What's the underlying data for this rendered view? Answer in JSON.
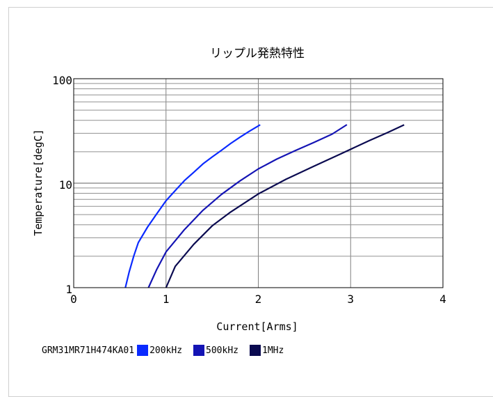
{
  "chart_data": {
    "type": "line",
    "title": "リップル発熱特性",
    "xlabel": "Current[Arms]",
    "ylabel": "Temperature[degC]",
    "xlim": [
      0,
      4
    ],
    "ylim": [
      1,
      100
    ],
    "yscale": "log",
    "grid": true,
    "legend_position": "bottom-left",
    "x_ticks": [
      "0",
      "1",
      "2",
      "3",
      "4"
    ],
    "y_ticks": [
      "1",
      "10",
      "100"
    ],
    "model": "GRM31MR71H474KA01",
    "series": [
      {
        "name": "200kHz",
        "color": "#0a2aff",
        "points": [
          [
            0.56,
            1.0
          ],
          [
            0.6,
            1.4
          ],
          [
            0.65,
            2
          ],
          [
            0.7,
            2.7
          ],
          [
            0.8,
            3.8
          ],
          [
            0.9,
            5.1
          ],
          [
            1.0,
            6.8
          ],
          [
            1.1,
            8.5
          ],
          [
            1.2,
            10.6
          ],
          [
            1.3,
            12.7
          ],
          [
            1.4,
            15.3
          ],
          [
            1.5,
            17.8
          ],
          [
            1.6,
            20.6
          ],
          [
            1.7,
            24
          ],
          [
            1.8,
            27.5
          ],
          [
            1.9,
            31.3
          ],
          [
            2.02,
            36.2
          ]
        ]
      },
      {
        "name": "500kHz",
        "color": "#1414b4",
        "points": [
          [
            0.81,
            1.0
          ],
          [
            0.9,
            1.5
          ],
          [
            1.0,
            2.2
          ],
          [
            1.2,
            3.6
          ],
          [
            1.4,
            5.5
          ],
          [
            1.6,
            7.8
          ],
          [
            1.8,
            10.5
          ],
          [
            2.0,
            13.7
          ],
          [
            2.2,
            17
          ],
          [
            2.4,
            20.5
          ],
          [
            2.6,
            24.5
          ],
          [
            2.8,
            29.5
          ],
          [
            2.96,
            36.3
          ]
        ]
      },
      {
        "name": "1MHz",
        "color": "#0a0a50",
        "points": [
          [
            1.0,
            1.0
          ],
          [
            1.1,
            1.6
          ],
          [
            1.3,
            2.6
          ],
          [
            1.5,
            3.9
          ],
          [
            1.7,
            5.3
          ],
          [
            2.0,
            7.9
          ],
          [
            2.3,
            10.9
          ],
          [
            2.6,
            14.5
          ],
          [
            2.9,
            19.2
          ],
          [
            3.2,
            25.5
          ],
          [
            3.4,
            30.5
          ],
          [
            3.58,
            36.2
          ]
        ]
      }
    ]
  }
}
